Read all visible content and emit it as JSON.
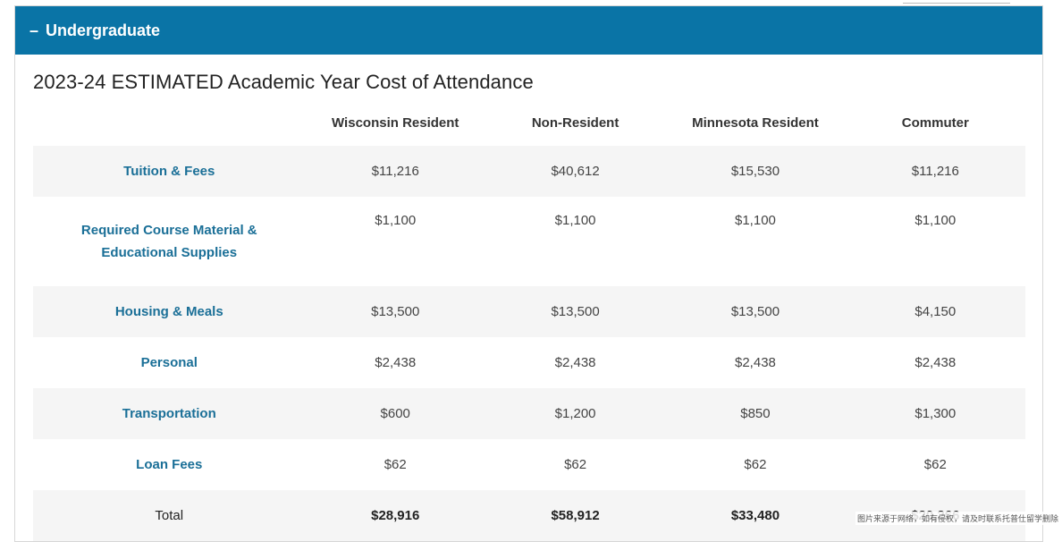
{
  "accordion": {
    "toggle_symbol": "–",
    "title": "Undergraduate",
    "color": "#0a74a6"
  },
  "section_title": "2023-24 ESTIMATED Academic Year Cost of Attendance",
  "table": {
    "columns": [
      "Wisconsin Resident",
      "Non-Resident",
      "Minnesota Resident",
      "Commuter"
    ],
    "rows": [
      {
        "label": "Tuition & Fees",
        "values": [
          "$11,216",
          "$40,612",
          "$15,530",
          "$11,216"
        ]
      },
      {
        "label": "Required Course Material & Educational Supplies",
        "values": [
          "$1,100",
          "$1,100",
          "$1,100",
          "$1,100"
        ]
      },
      {
        "label": "Housing & Meals",
        "values": [
          "$13,500",
          "$13,500",
          "$13,500",
          "$4,150"
        ]
      },
      {
        "label": "Personal",
        "values": [
          "$2,438",
          "$2,438",
          "$2,438",
          "$2,438"
        ]
      },
      {
        "label": "Transportation",
        "values": [
          "$600",
          "$1,200",
          "$850",
          "$1,300"
        ]
      },
      {
        "label": "Loan Fees",
        "values": [
          "$62",
          "$62",
          "$62",
          "$62"
        ]
      }
    ],
    "total": {
      "label": "Total",
      "values": [
        "$28,916",
        "$58,912",
        "$33,480",
        "$20,266"
      ]
    }
  },
  "watermark": "图片来源于网络，如有侵权，请及时联系托普仕留学删除"
}
